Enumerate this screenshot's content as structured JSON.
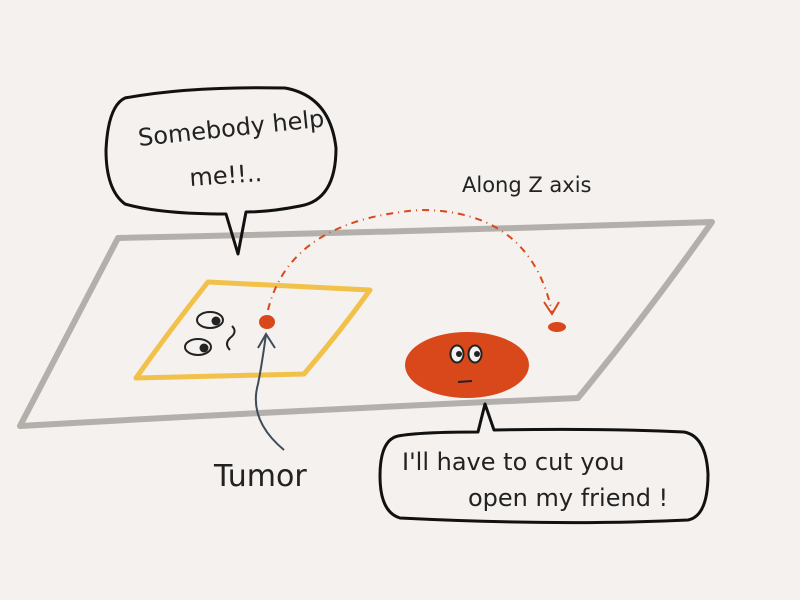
{
  "diagram": {
    "left_bubble": {
      "line1": "Somebody help",
      "line2": "me!!.."
    },
    "right_bubble": {
      "line1": "I'll have to cut you",
      "line2": "open my friend !"
    },
    "axis_label": "Along Z axis",
    "tumor_label": "Tumor",
    "colors": {
      "background": "#f4f1ee",
      "plane": "#b3b0ac",
      "slice": "#f2c14a",
      "tumor": "#d9481a",
      "path": "#d9481a",
      "arrow": "#3e4b58",
      "ink": "#222222"
    }
  }
}
